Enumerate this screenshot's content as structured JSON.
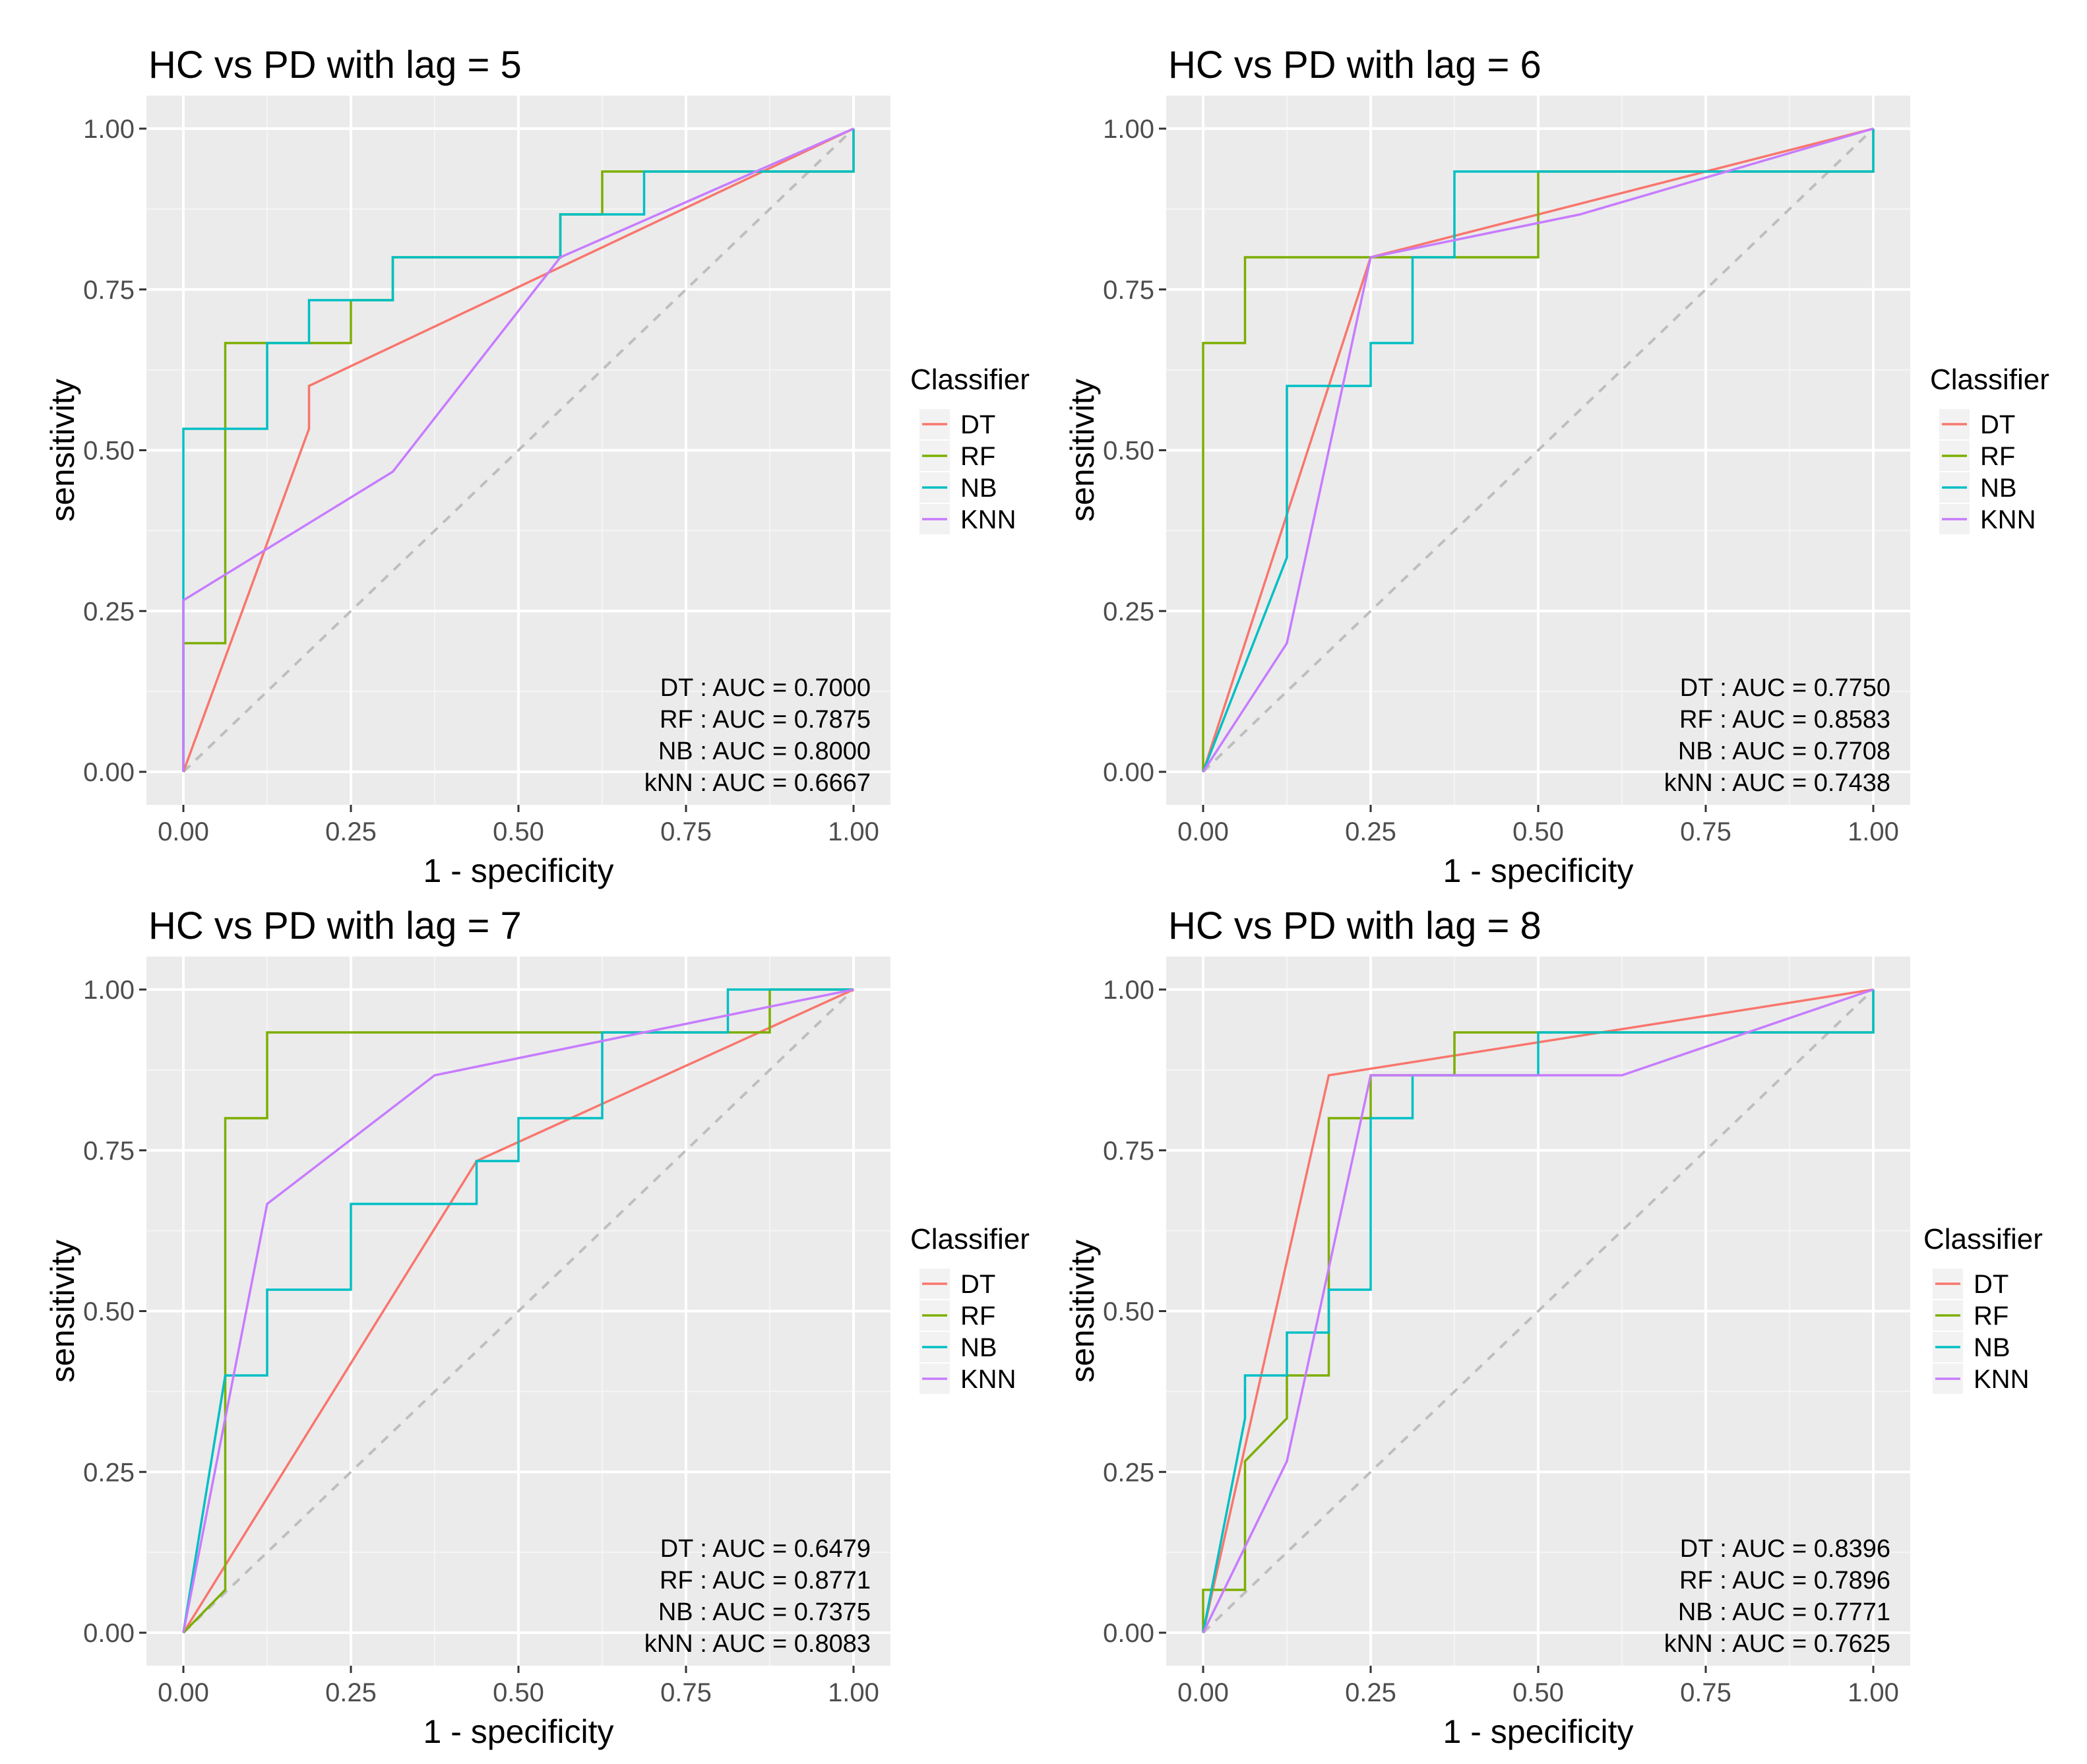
{
  "chart_data": [
    {
      "type": "line",
      "title": "HC vs PD with lag = 5",
      "xlabel": "1 - specificity",
      "ylabel": "sensitivity",
      "xlim": [
        0,
        1
      ],
      "ylim": [
        0,
        1
      ],
      "x_ticks": [
        "0.00",
        "0.25",
        "0.50",
        "0.75",
        "1.00"
      ],
      "y_ticks": [
        "0.00",
        "0.25",
        "0.50",
        "0.75",
        "1.00"
      ],
      "grid": true,
      "legend": {
        "title": "Classifier",
        "position": "right",
        "labels": [
          "DT",
          "RF",
          "NB",
          "KNN"
        ]
      },
      "series": [
        {
          "name": "DT",
          "color": "#F8766D",
          "x": [
            0,
            0.1875,
            0.1875,
            1
          ],
          "y": [
            0,
            0.5333,
            0.6,
            1
          ]
        },
        {
          "name": "RF",
          "color": "#7CAE00",
          "x": [
            0,
            0,
            0.0625,
            0.0625,
            0.25,
            0.25,
            0.3125,
            0.3125,
            0.5625,
            0.5625,
            0.625,
            0.625,
            1,
            1
          ],
          "y": [
            0,
            0.2,
            0.2,
            0.6667,
            0.6667,
            0.7333,
            0.7333,
            0.8,
            0.8,
            0.8667,
            0.8667,
            0.9333,
            0.9333,
            1
          ]
        },
        {
          "name": "NB",
          "color": "#00BFC4",
          "x": [
            0,
            0,
            0.125,
            0.125,
            0.1875,
            0.1875,
            0.3125,
            0.3125,
            0.5625,
            0.5625,
            0.6875,
            0.6875,
            1,
            1
          ],
          "y": [
            0,
            0.5333,
            0.5333,
            0.6667,
            0.6667,
            0.7333,
            0.7333,
            0.8,
            0.8,
            0.8667,
            0.8667,
            0.9333,
            0.9333,
            1
          ]
        },
        {
          "name": "KNN",
          "color": "#C77CFF",
          "x": [
            0,
            0,
            0.3125,
            0.5625,
            1
          ],
          "y": [
            0,
            0.2667,
            0.4667,
            0.8,
            1
          ]
        }
      ],
      "annotations": [
        "DT : AUC = 0.7000",
        "RF : AUC = 0.7875",
        "NB : AUC = 0.8000",
        "kNN : AUC = 0.6667"
      ]
    },
    {
      "type": "line",
      "title": "HC vs PD with lag = 6",
      "xlabel": "1 - specificity",
      "ylabel": "sensitivity",
      "xlim": [
        0,
        1
      ],
      "ylim": [
        0,
        1
      ],
      "x_ticks": [
        "0.00",
        "0.25",
        "0.50",
        "0.75",
        "1.00"
      ],
      "y_ticks": [
        "0.00",
        "0.25",
        "0.50",
        "0.75",
        "1.00"
      ],
      "grid": true,
      "legend": {
        "title": "Classifier",
        "position": "right",
        "labels": [
          "DT",
          "RF",
          "NB",
          "KNN"
        ]
      },
      "series": [
        {
          "name": "DT",
          "color": "#F8766D",
          "x": [
            0,
            0.25,
            1
          ],
          "y": [
            0,
            0.8,
            1
          ]
        },
        {
          "name": "RF",
          "color": "#7CAE00",
          "x": [
            0,
            0,
            0.0625,
            0.0625,
            0.5,
            0.5,
            1,
            1
          ],
          "y": [
            0,
            0.6667,
            0.6667,
            0.8,
            0.8,
            0.9333,
            0.9333,
            1
          ]
        },
        {
          "name": "NB",
          "color": "#00BFC4",
          "x": [
            0,
            0.125,
            0.125,
            0.25,
            0.25,
            0.3125,
            0.3125,
            0.375,
            0.375,
            1,
            1
          ],
          "y": [
            0,
            0.3333,
            0.6,
            0.6,
            0.6667,
            0.6667,
            0.8,
            0.8,
            0.9333,
            0.9333,
            1
          ]
        },
        {
          "name": "KNN",
          "color": "#C77CFF",
          "x": [
            0,
            0.125,
            0.25,
            0.5625,
            1
          ],
          "y": [
            0,
            0.2,
            0.8,
            0.8667,
            1
          ]
        }
      ],
      "annotations": [
        "DT : AUC = 0.7750",
        "RF : AUC = 0.8583",
        "NB : AUC = 0.7708",
        "kNN : AUC = 0.7438"
      ]
    },
    {
      "type": "line",
      "title": "HC vs PD with lag = 7",
      "xlabel": "1 - specificity",
      "ylabel": "sensitivity",
      "xlim": [
        0,
        1
      ],
      "ylim": [
        0,
        1
      ],
      "x_ticks": [
        "0.00",
        "0.25",
        "0.50",
        "0.75",
        "1.00"
      ],
      "y_ticks": [
        "0.00",
        "0.25",
        "0.50",
        "0.75",
        "1.00"
      ],
      "grid": true,
      "legend": {
        "title": "Classifier",
        "position": "right",
        "labels": [
          "DT",
          "RF",
          "NB",
          "KNN"
        ]
      },
      "series": [
        {
          "name": "DT",
          "color": "#F8766D",
          "x": [
            0,
            0.4375,
            1
          ],
          "y": [
            0,
            0.7333,
            1
          ]
        },
        {
          "name": "RF",
          "color": "#7CAE00",
          "x": [
            0,
            0.0625,
            0.0625,
            0.125,
            0.125,
            0.875,
            0.875,
            1
          ],
          "y": [
            0,
            0.0667,
            0.8,
            0.8,
            0.9333,
            0.9333,
            1,
            1
          ]
        },
        {
          "name": "NB",
          "color": "#00BFC4",
          "x": [
            0,
            0.0625,
            0.125,
            0.125,
            0.25,
            0.25,
            0.4375,
            0.4375,
            0.5,
            0.5,
            0.625,
            0.625,
            0.8125,
            0.8125,
            1
          ],
          "y": [
            0,
            0.4,
            0.4,
            0.5333,
            0.5333,
            0.6667,
            0.6667,
            0.7333,
            0.7333,
            0.8,
            0.8,
            0.9333,
            0.9333,
            1,
            1
          ]
        },
        {
          "name": "KNN",
          "color": "#C77CFF",
          "x": [
            0,
            0.125,
            0.375,
            1
          ],
          "y": [
            0,
            0.6667,
            0.8667,
            1
          ]
        }
      ],
      "annotations": [
        "DT : AUC = 0.6479",
        "RF : AUC = 0.8771",
        "NB : AUC = 0.7375",
        "kNN : AUC = 0.8083"
      ]
    },
    {
      "type": "line",
      "title": "HC vs PD with lag = 8",
      "xlabel": "1 - specificity",
      "ylabel": "sensitivity",
      "xlim": [
        0,
        1
      ],
      "ylim": [
        0,
        1
      ],
      "x_ticks": [
        "0.00",
        "0.25",
        "0.50",
        "0.75",
        "1.00"
      ],
      "y_ticks": [
        "0.00",
        "0.25",
        "0.50",
        "0.75",
        "1.00"
      ],
      "grid": true,
      "legend": {
        "title": "Classifier",
        "position": "right",
        "labels": [
          "DT",
          "RF",
          "NB",
          "KNN"
        ]
      },
      "series": [
        {
          "name": "DT",
          "color": "#F8766D",
          "x": [
            0,
            0.1875,
            1
          ],
          "y": [
            0,
            0.8667,
            1
          ]
        },
        {
          "name": "RF",
          "color": "#7CAE00",
          "x": [
            0,
            0,
            0.0625,
            0.0625,
            0.125,
            0.125,
            0.1875,
            0.1875,
            0.25,
            0.25,
            0.375,
            0.375,
            1,
            1
          ],
          "y": [
            0,
            0.0667,
            0.0667,
            0.2667,
            0.3333,
            0.4,
            0.4,
            0.8,
            0.8,
            0.8667,
            0.8667,
            0.9333,
            0.9333,
            1
          ]
        },
        {
          "name": "NB",
          "color": "#00BFC4",
          "x": [
            0,
            0.0625,
            0.0625,
            0.125,
            0.125,
            0.1875,
            0.1875,
            0.25,
            0.25,
            0.3125,
            0.3125,
            0.5,
            0.5,
            1,
            1
          ],
          "y": [
            0,
            0.3333,
            0.4,
            0.4,
            0.4667,
            0.4667,
            0.5333,
            0.5333,
            0.8,
            0.8,
            0.8667,
            0.8667,
            0.9333,
            0.9333,
            1
          ]
        },
        {
          "name": "KNN",
          "color": "#C77CFF",
          "x": [
            0,
            0.125,
            0.25,
            0.625,
            1
          ],
          "y": [
            0,
            0.2667,
            0.8667,
            0.8667,
            1
          ]
        }
      ],
      "annotations": [
        "DT : AUC = 0.8396",
        "RF : AUC = 0.7896",
        "NB : AUC = 0.7771",
        "kNN : AUC = 0.7625"
      ]
    }
  ]
}
